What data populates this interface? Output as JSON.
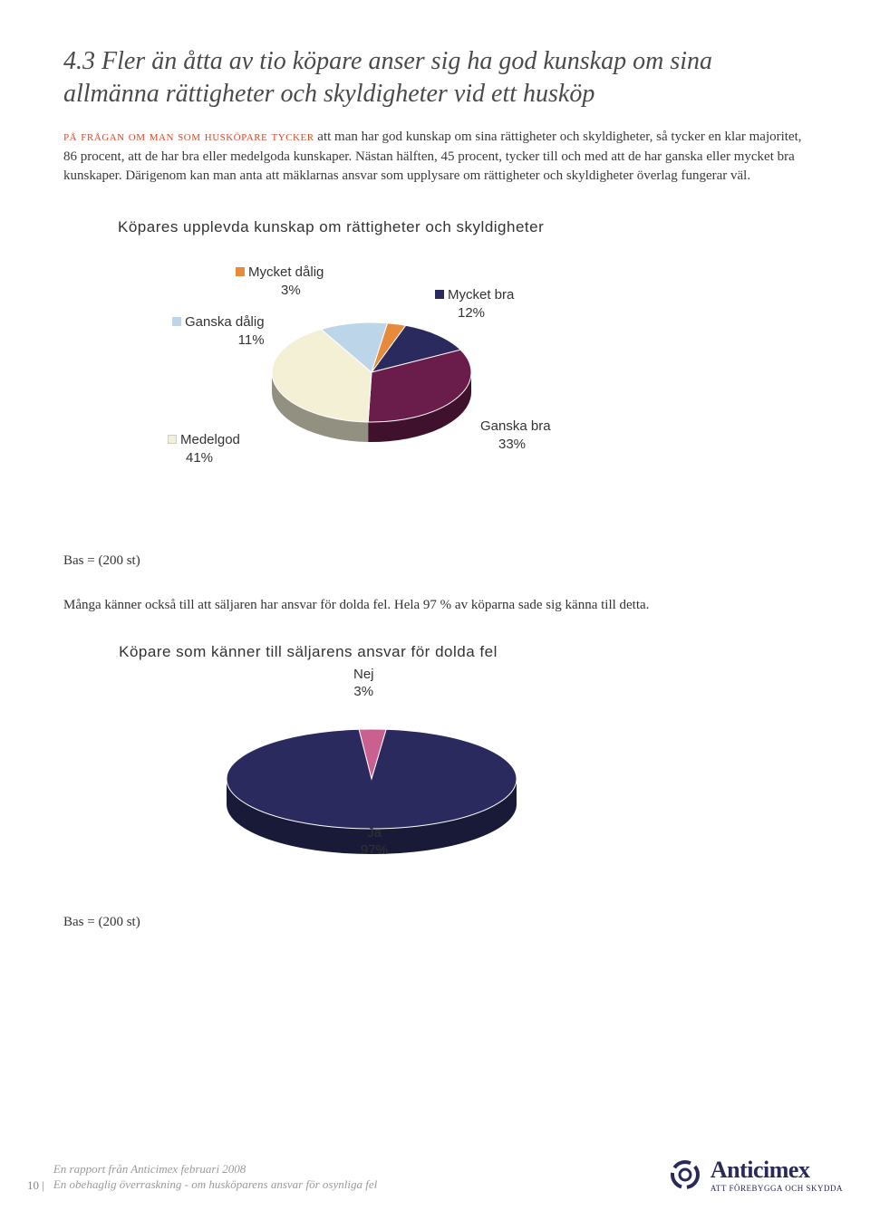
{
  "heading": "4.3 Fler än åtta av tio köpare anser sig ha god kunskap om sina allmänna rättigheter och skyldigheter vid ett husköp",
  "lead_in": "på frågan om man som husköpare tycker",
  "body": " att man har god kunskap om sina rättigheter och skyldigheter, så tycker en klar majoritet, 86 procent, att de har bra eller medelgoda kunskaper. Nästan hälften, 45 procent, tycker till och med att de har ganska eller mycket bra kunskaper. Därigenom kan man anta att mäklarnas ansvar som upplysare om rättigheter och skyldigheter överlag fungerar väl.",
  "chart1": {
    "title": "Köpares upplevda kunskap om rättigheter och skyldigheter",
    "type": "pie",
    "slices": [
      {
        "label": "Mycket bra",
        "value": 12,
        "color": "#2a2a5e",
        "legend_color": "#2a2a5e"
      },
      {
        "label": "Ganska bra",
        "value": 33,
        "color": "#6a1d4a",
        "legend_color": "#7a3060"
      },
      {
        "label": "Medelgod",
        "value": 41,
        "color": "#f4f0d6",
        "legend_color": "#f4f0d6"
      },
      {
        "label": "Ganska dålig",
        "value": 11,
        "color": "#bcd5e8",
        "legend_color": "#bcd5e8"
      },
      {
        "label": "Mycket dålig",
        "value": 3,
        "color": "#e88a3c",
        "legend_color": "#e88a3c"
      }
    ],
    "labels": {
      "mycket_dalig": "Mycket dålig",
      "mycket_dalig_pct": "3%",
      "ganska_dalig": "Ganska dålig",
      "ganska_dalig_pct": "11%",
      "medelgod": "Medelgod",
      "medelgod_pct": "41%",
      "ganska_bra": "Ganska bra",
      "ganska_bra_pct": "33%",
      "mycket_bra": "Mycket bra",
      "mycket_bra_pct": "12%"
    },
    "background": "#ffffff",
    "label_fontsize": 15
  },
  "base_text_1": "Bas = (200 st)",
  "mid_para": "Många känner också till att säljaren har ansvar för dolda fel. Hela 97 % av köparna sade sig känna till detta.",
  "chart2": {
    "title": "Köpare som känner till säljarens ansvar för dolda fel",
    "type": "pie",
    "slices": [
      {
        "label": "Ja",
        "value": 97,
        "color": "#2a2a5e"
      },
      {
        "label": "Nej",
        "value": 3,
        "color": "#c96090"
      }
    ],
    "labels": {
      "nej": "Nej",
      "nej_pct": "3%",
      "ja": "Ja",
      "ja_pct": "97%"
    },
    "background": "#ffffff"
  },
  "base_text_2": "Bas = (200 st)",
  "footer": {
    "page_num": "10",
    "line1": "En rapport från Anticimex februari 2008",
    "line2": "En obehaglig överraskning - om husköparens ansvar för osynliga fel",
    "logo_name": "Anticimex",
    "logo_tag": "ATT FÖREBYGGA OCH SKYDDA"
  },
  "colors": {
    "accent": "#d84a2e",
    "text": "#333333",
    "footer_text": "#9a9a98",
    "logo": "#2a2a5a"
  }
}
